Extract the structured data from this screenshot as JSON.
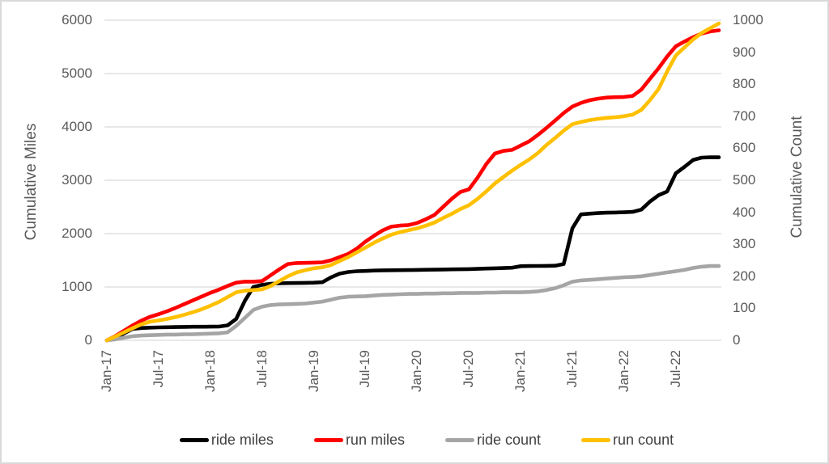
{
  "chart_data": {
    "type": "line",
    "title": "",
    "ylabel_left": "Cumulative Miles",
    "ylabel_right": "Cumulative Count",
    "grid": "horizontal",
    "legend_position": "bottom",
    "gridline_color": "#d9d9d9",
    "axis_text_color": "#595959",
    "legend_text_color": "#404040",
    "x_range": "Jan-2017 to Dec-2022 (monthly)",
    "n_points": 72,
    "x_tick_labels": [
      "Jan-17",
      "Jul-17",
      "Jan-18",
      "Jul-18",
      "Jan-19",
      "Jul-19",
      "Jan-20",
      "Jul-20",
      "Jan-21",
      "Jul-21",
      "Jan-22",
      "Jul-22"
    ],
    "x_tick_indices": [
      0,
      6,
      12,
      18,
      24,
      30,
      36,
      42,
      48,
      54,
      60,
      66
    ],
    "left_axis": {
      "min": 0,
      "max": 6000,
      "ticks": [
        0,
        1000,
        2000,
        3000,
        4000,
        5000,
        6000
      ]
    },
    "right_axis": {
      "min": 0,
      "max": 1000,
      "ticks": [
        0,
        100,
        200,
        300,
        400,
        500,
        600,
        700,
        800,
        900,
        1000
      ]
    },
    "series": [
      {
        "name": "ride miles",
        "color": "#000000",
        "axis": "left",
        "values": [
          0,
          40,
          130,
          215,
          230,
          238,
          242,
          245,
          248,
          252,
          254,
          255,
          256,
          258,
          280,
          400,
          740,
          1000,
          1040,
          1060,
          1068,
          1072,
          1075,
          1077,
          1080,
          1090,
          1180,
          1250,
          1280,
          1295,
          1300,
          1308,
          1312,
          1314,
          1315,
          1316,
          1320,
          1322,
          1325,
          1328,
          1330,
          1332,
          1335,
          1340,
          1345,
          1350,
          1355,
          1360,
          1390,
          1392,
          1394,
          1396,
          1398,
          1430,
          2100,
          2360,
          2375,
          2385,
          2392,
          2396,
          2400,
          2408,
          2450,
          2600,
          2720,
          2790,
          3130,
          3250,
          3380,
          3425,
          3430,
          3430
        ]
      },
      {
        "name": "run miles",
        "color": "#ff0000",
        "axis": "left",
        "values": [
          0,
          80,
          180,
          280,
          370,
          440,
          490,
          545,
          610,
          680,
          750,
          820,
          890,
          950,
          1020,
          1080,
          1100,
          1100,
          1110,
          1220,
          1330,
          1430,
          1448,
          1452,
          1456,
          1462,
          1500,
          1560,
          1620,
          1720,
          1850,
          1960,
          2060,
          2130,
          2150,
          2160,
          2200,
          2270,
          2350,
          2500,
          2650,
          2780,
          2830,
          3050,
          3300,
          3500,
          3550,
          3570,
          3650,
          3730,
          3850,
          3980,
          4120,
          4260,
          4380,
          4450,
          4500,
          4530,
          4550,
          4558,
          4562,
          4580,
          4700,
          4900,
          5100,
          5320,
          5510,
          5600,
          5680,
          5750,
          5790,
          5810
        ]
      },
      {
        "name": "ride count",
        "color": "#a5a5a5",
        "axis": "right",
        "values": [
          0,
          3,
          8,
          13,
          15,
          16,
          17,
          18,
          18,
          19,
          19,
          20,
          21,
          22,
          25,
          45,
          70,
          95,
          105,
          110,
          112,
          113,
          114,
          115,
          118,
          121,
          127,
          133,
          136,
          137,
          138,
          140,
          142,
          143,
          144,
          145,
          145,
          146,
          146,
          147,
          147,
          148,
          148,
          148,
          149,
          149,
          150,
          150,
          150,
          151,
          153,
          157,
          163,
          172,
          183,
          187,
          189,
          191,
          193,
          195,
          197,
          198,
          200,
          204,
          208,
          212,
          216,
          220,
          226,
          230,
          232,
          232
        ]
      },
      {
        "name": "run count",
        "color": "#ffc000",
        "axis": "right",
        "values": [
          0,
          12,
          25,
          38,
          50,
          58,
          62,
          67,
          73,
          80,
          88,
          97,
          108,
          120,
          135,
          150,
          155,
          157,
          159,
          170,
          185,
          200,
          212,
          219,
          225,
          228,
          235,
          248,
          260,
          275,
          290,
          305,
          318,
          330,
          338,
          344,
          350,
          358,
          368,
          382,
          395,
          410,
          422,
          442,
          465,
          490,
          510,
          530,
          548,
          565,
          585,
          610,
          632,
          655,
          675,
          682,
          688,
          692,
          695,
          697,
          700,
          705,
          720,
          750,
          785,
          840,
          890,
          915,
          940,
          960,
          975,
          990
        ]
      }
    ]
  }
}
